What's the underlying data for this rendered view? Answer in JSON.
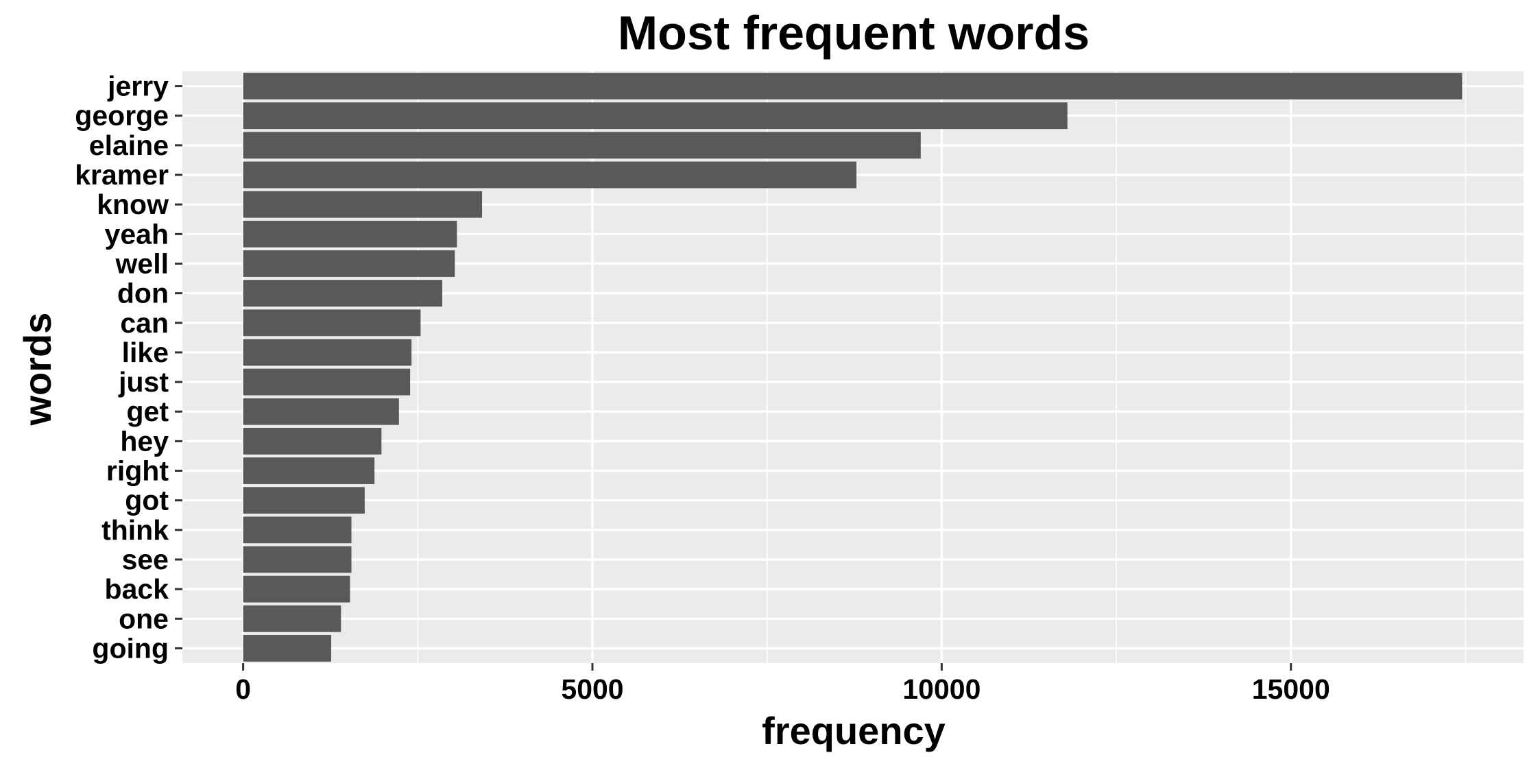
{
  "chart_data": {
    "type": "bar",
    "orientation": "horizontal",
    "title": "Most frequent words",
    "xlabel": "frequency",
    "ylabel": "words",
    "categories": [
      "jerry",
      "george",
      "elaine",
      "kramer",
      "know",
      "yeah",
      "well",
      "don",
      "can",
      "like",
      "just",
      "get",
      "hey",
      "right",
      "got",
      "think",
      "see",
      "back",
      "one",
      "going"
    ],
    "values": [
      17450,
      11800,
      9700,
      8780,
      3420,
      3060,
      3030,
      2850,
      2540,
      2410,
      2390,
      2230,
      1980,
      1880,
      1740,
      1550,
      1550,
      1530,
      1400,
      1260
    ],
    "xlim": [
      -870,
      18330
    ],
    "xticks": [
      0,
      5000,
      10000,
      15000
    ],
    "xtick_labels": [
      "0",
      "5000",
      "10000",
      "15000"
    ],
    "grid": true,
    "legend": "none",
    "colors": {
      "bar": "#595959",
      "panel": "#ebebeb",
      "grid": "#ffffff",
      "text": "#000000",
      "tick": "#333333"
    }
  }
}
